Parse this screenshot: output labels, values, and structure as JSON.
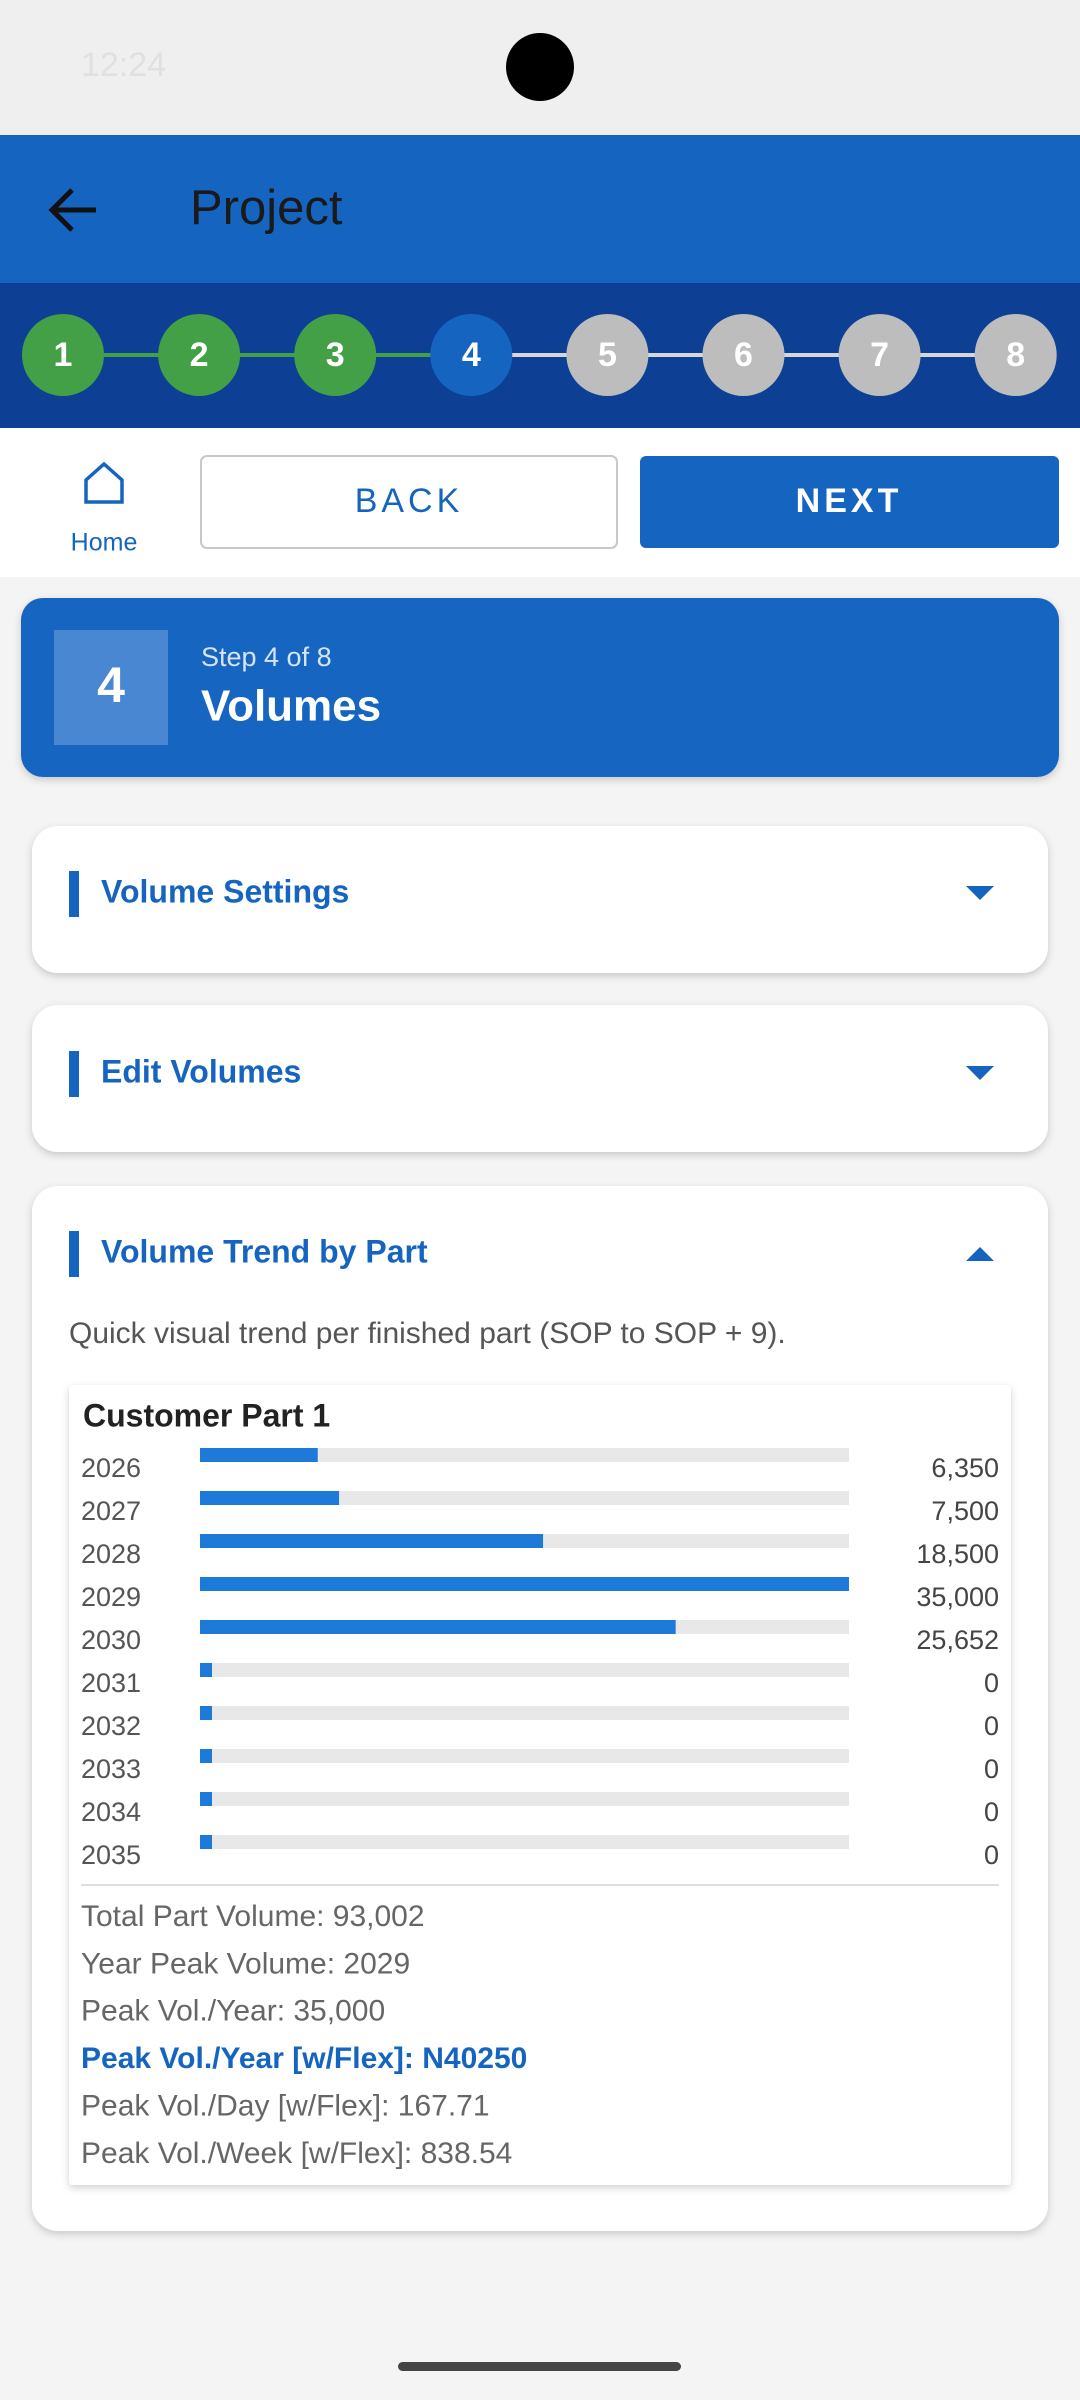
{
  "status_bar": {
    "time": "12:24"
  },
  "app_bar": {
    "title": "Project"
  },
  "stepper": {
    "steps": [
      "1",
      "2",
      "3",
      "4",
      "5",
      "6",
      "7",
      "8"
    ]
  },
  "nav": {
    "home": "Home",
    "back": "BACK",
    "next": "NEXT"
  },
  "step_card": {
    "number": "4",
    "subtitle": "Step 4 of 8",
    "title": "Volumes"
  },
  "sections": {
    "volume_settings": "Volume Settings",
    "edit_volumes": "Edit Volumes",
    "trend": "Volume Trend by Part"
  },
  "trend": {
    "subtitle": "Quick visual trend per finished part (SOP to SOP + 9).",
    "part_name": "Customer Part 1",
    "years": [
      "2026",
      "2027",
      "2028",
      "2029",
      "2030",
      "2031",
      "2032",
      "2033",
      "2034",
      "2035"
    ],
    "values": [
      6350,
      7500,
      18500,
      35000,
      25652,
      0,
      0,
      0,
      0,
      0
    ],
    "value_labels": [
      "6,350",
      "7,500",
      "18,500",
      "35,000",
      "25,652",
      "0",
      "0",
      "0",
      "0",
      "0"
    ],
    "stats": [
      "Total Part Volume: 93,002",
      "Year Peak Volume: 2029",
      "Peak Vol./Year: 35,000",
      "Peak Vol./Year [w/Flex]: N40250",
      "Peak Vol./Day [w/Flex]: 167.71",
      "Peak Vol./Week [w/Flex]: 838.54"
    ]
  }
}
